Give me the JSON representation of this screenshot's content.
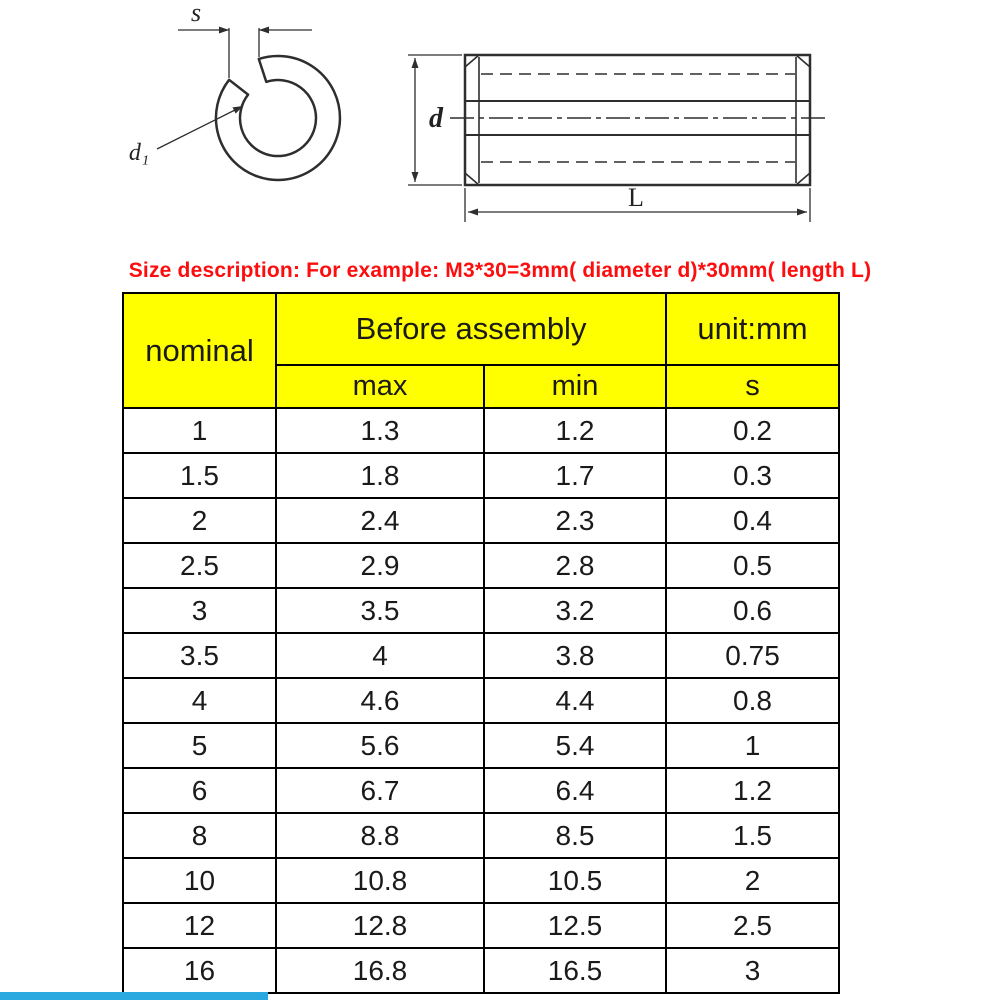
{
  "page": {
    "size_description": "Size description: For example: M3*30=3mm( diameter d)*30mm( length L)"
  },
  "diagram": {
    "front_view": {
      "slot_width_label": "s",
      "inner_diameter_label": "d₁"
    },
    "side_view": {
      "diameter_label": "d",
      "length_label": "L"
    }
  },
  "table": {
    "headers": {
      "nominal": "nominal",
      "before_assembly": "Before assembly",
      "unit": "unit:mm",
      "max": "max",
      "min": "min",
      "s": "s"
    },
    "columns": [
      "nominal",
      "max",
      "min",
      "s"
    ],
    "rows": [
      [
        "1",
        "1.3",
        "1.2",
        "0.2"
      ],
      [
        "1.5",
        "1.8",
        "1.7",
        "0.3"
      ],
      [
        "2",
        "2.4",
        "2.3",
        "0.4"
      ],
      [
        "2.5",
        "2.9",
        "2.8",
        "0.5"
      ],
      [
        "3",
        "3.5",
        "3.2",
        "0.6"
      ],
      [
        "3.5",
        "4",
        "3.8",
        "0.75"
      ],
      [
        "4",
        "4.6",
        "4.4",
        "0.8"
      ],
      [
        "5",
        "5.6",
        "5.4",
        "1"
      ],
      [
        "6",
        "6.7",
        "6.4",
        "1.2"
      ],
      [
        "8",
        "8.8",
        "8.5",
        "1.5"
      ],
      [
        "10",
        "10.8",
        "10.5",
        "2"
      ],
      [
        "12",
        "12.8",
        "12.5",
        "2.5"
      ],
      [
        "16",
        "16.8",
        "16.5",
        "3"
      ]
    ]
  },
  "colors": {
    "table_header_bg": "#ffff00",
    "description_text": "#fd0d0d",
    "drawing_lines": "#2e2e2e",
    "table_border": "#000000",
    "bottom_bar": "#2aa9e0"
  }
}
